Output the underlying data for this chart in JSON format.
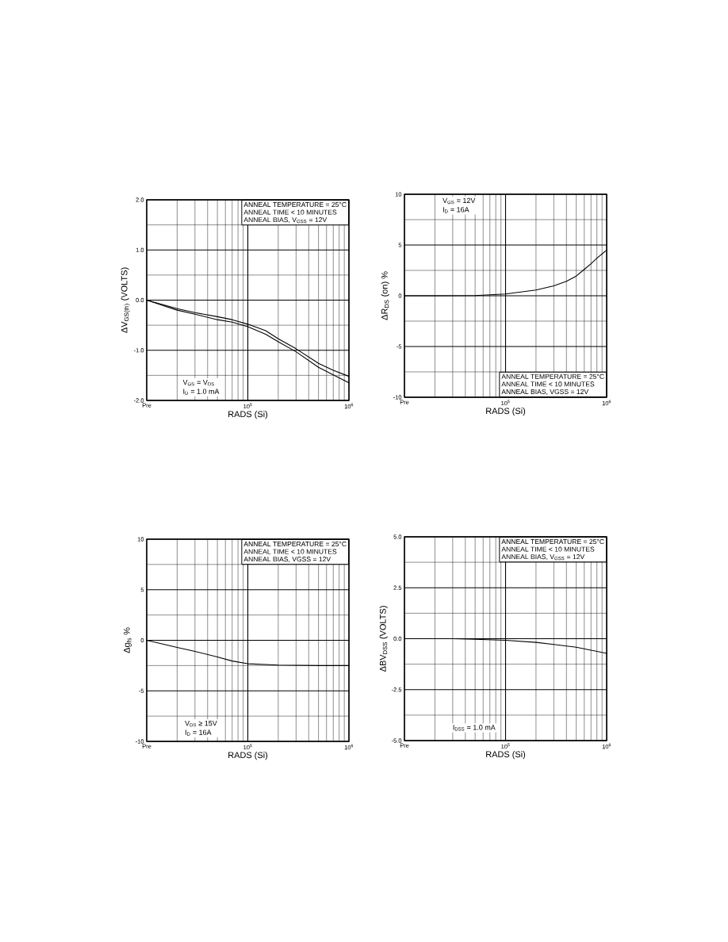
{
  "chart_data": [
    {
      "type": "line",
      "xlabel": "RADS (Si)",
      "ylabel": "ΔV$_{GS(th)}$ (VOLTS)",
      "log": "x",
      "grid": true,
      "marker": "none",
      "xlim": [
        10000,
        1000000
      ],
      "ylim": [
        -2,
        2
      ],
      "xticks": [
        {
          "value": 10000,
          "label": "Pre"
        },
        {
          "value": 20000,
          "label": null
        },
        {
          "value": 30000,
          "label": null
        },
        {
          "value": 40000,
          "label": null
        },
        {
          "value": 50000,
          "label": null
        },
        {
          "value": 60000,
          "label": null
        },
        {
          "value": 70000,
          "label": null
        },
        {
          "value": 80000,
          "label": null
        },
        {
          "value": 90000,
          "label": null
        },
        {
          "value": 100000,
          "label": "10$^{5}$"
        },
        {
          "value": 200000,
          "label": null
        },
        {
          "value": 300000,
          "label": null
        },
        {
          "value": 400000,
          "label": null
        },
        {
          "value": 500000,
          "label": null
        },
        {
          "value": 600000,
          "label": null
        },
        {
          "value": 700000,
          "label": null
        },
        {
          "value": 800000,
          "label": null
        },
        {
          "value": 900000,
          "label": null
        },
        {
          "value": 1000000,
          "label": "10$^{6}$"
        }
      ],
      "yticks": [
        {
          "value": -2,
          "label": "-2.0"
        },
        {
          "value": -1.5,
          "label": null
        },
        {
          "value": -1,
          "label": "-1.0"
        },
        {
          "value": -0.5,
          "label": null
        },
        {
          "value": 0,
          "label": "0.0"
        },
        {
          "value": 0.5,
          "label": null
        },
        {
          "value": 1,
          "label": "1.0"
        },
        {
          "value": 1.5,
          "label": null
        },
        {
          "value": 2,
          "label": "2.0"
        }
      ],
      "x": [
        10000,
        20000,
        30000,
        50000,
        70000,
        100000,
        150000,
        200000,
        300000,
        500000,
        700000,
        1000000
      ],
      "series": [
        {
          "color": "#000000",
          "values": [
            0.0,
            -0.17,
            -0.25,
            -0.33,
            -0.39,
            -0.48,
            -0.61,
            -0.77,
            -0.97,
            -1.26,
            -1.4,
            -1.52
          ]
        },
        {
          "color": "#000000",
          "values": [
            0.0,
            -0.2,
            -0.28,
            -0.39,
            -0.44,
            -0.53,
            -0.68,
            -0.83,
            -1.03,
            -1.34,
            -1.49,
            -1.65
          ]
        }
      ],
      "annotations": [
        "ANNEAL TEMPERATURE = 25°C",
        "ANNEAL TIME < 10 MINUTES",
        "ANNEAL BIAS, V$_{GSS}$ = 12V",
        "V$_{GS}$ = V$_{DS}$",
        "I$_{D}$ = 1.0 mA"
      ]
    },
    {
      "type": "line",
      "xlabel": "RADS (Si)",
      "ylabel": "ΔR$_{DS}$ (on) %",
      "log": "x",
      "grid": true,
      "marker": "none",
      "xlim": [
        10000,
        1000000
      ],
      "ylim": [
        -10,
        10
      ],
      "xticks": [
        {
          "value": 10000,
          "label": "Pre"
        },
        {
          "value": 20000,
          "label": null
        },
        {
          "value": 30000,
          "label": null
        },
        {
          "value": 40000,
          "label": null
        },
        {
          "value": 50000,
          "label": null
        },
        {
          "value": 60000,
          "label": null
        },
        {
          "value": 70000,
          "label": null
        },
        {
          "value": 80000,
          "label": null
        },
        {
          "value": 90000,
          "label": null
        },
        {
          "value": 100000,
          "label": "10$^{5}$"
        },
        {
          "value": 200000,
          "label": null
        },
        {
          "value": 300000,
          "label": null
        },
        {
          "value": 400000,
          "label": null
        },
        {
          "value": 500000,
          "label": null
        },
        {
          "value": 600000,
          "label": null
        },
        {
          "value": 700000,
          "label": null
        },
        {
          "value": 800000,
          "label": null
        },
        {
          "value": 900000,
          "label": null
        },
        {
          "value": 1000000,
          "label": "10$^{6}$"
        }
      ],
      "yticks": [
        -10,
        {
          "value": -7.5,
          "label": null
        },
        -5,
        {
          "value": -2.5,
          "label": null
        },
        0,
        {
          "value": 2.5,
          "label": null
        },
        5,
        {
          "value": 7.5,
          "label": null
        },
        10
      ],
      "x": [
        10000,
        20000,
        50000,
        100000,
        200000,
        300000,
        400000,
        500000,
        600000,
        700000,
        800000,
        1000000
      ],
      "series": [
        {
          "color": "#000000",
          "values": [
            0.0,
            0.0,
            0.02,
            0.18,
            0.57,
            0.98,
            1.42,
            1.94,
            2.6,
            3.15,
            3.7,
            4.5
          ]
        }
      ],
      "annotations": [
        "ANNEAL TEMPERATURE = 25°C",
        "ANNEAL TIME < 10 MINUTES",
        "ANNEAL BIAS, VGSS = 12V",
        "V$_{GS}$ = 12V",
        "I$_{D}$ = 16A"
      ]
    },
    {
      "type": "line",
      "xlabel": "RADS (Si)",
      "ylabel": "Δg$_{fs}$ %",
      "log": "x",
      "grid": true,
      "marker": "none",
      "xlim": [
        10000,
        1000000
      ],
      "ylim": [
        -10,
        10
      ],
      "xticks": [
        {
          "value": 10000,
          "label": "Pre"
        },
        {
          "value": 20000,
          "label": null
        },
        {
          "value": 30000,
          "label": null
        },
        {
          "value": 40000,
          "label": null
        },
        {
          "value": 50000,
          "label": null
        },
        {
          "value": 60000,
          "label": null
        },
        {
          "value": 70000,
          "label": null
        },
        {
          "value": 80000,
          "label": null
        },
        {
          "value": 90000,
          "label": null
        },
        {
          "value": 100000,
          "label": "10$^{5}$"
        },
        {
          "value": 200000,
          "label": null
        },
        {
          "value": 300000,
          "label": null
        },
        {
          "value": 400000,
          "label": null
        },
        {
          "value": 500000,
          "label": null
        },
        {
          "value": 600000,
          "label": null
        },
        {
          "value": 700000,
          "label": null
        },
        {
          "value": 800000,
          "label": null
        },
        {
          "value": 900000,
          "label": null
        },
        {
          "value": 1000000,
          "label": "10$^{6}$"
        }
      ],
      "yticks": [
        -10,
        {
          "value": -7.5,
          "label": null
        },
        -5,
        {
          "value": -2.5,
          "label": null
        },
        0,
        {
          "value": 2.5,
          "label": null
        },
        5,
        {
          "value": 7.5,
          "label": null
        },
        10
      ],
      "x": [
        10000,
        20000,
        30000,
        50000,
        70000,
        100000,
        200000,
        500000,
        1000000
      ],
      "series": [
        {
          "color": "#000000",
          "values": [
            0.0,
            -0.7,
            -1.1,
            -1.65,
            -2.05,
            -2.32,
            -2.45,
            -2.5,
            -2.5
          ]
        }
      ],
      "annotations": [
        "ANNEAL TEMPERATURE = 25°C",
        "ANNEAL TIME < 10 MINUTES",
        "ANNEAL BIAS, VGSS = 12V",
        "V$_{DS}$ ≥ 15V",
        "I$_{D}$ = 16A"
      ]
    },
    {
      "type": "line",
      "xlabel": "RADS (Si)",
      "ylabel": "ΔBV$_{DSS}$ (VOLTS)",
      "log": "x",
      "grid": true,
      "marker": "none",
      "xlim": [
        10000,
        1000000
      ],
      "ylim": [
        -5,
        5
      ],
      "xticks": [
        {
          "value": 10000,
          "label": "Pre"
        },
        {
          "value": 20000,
          "label": null
        },
        {
          "value": 30000,
          "label": null
        },
        {
          "value": 40000,
          "label": null
        },
        {
          "value": 50000,
          "label": null
        },
        {
          "value": 60000,
          "label": null
        },
        {
          "value": 70000,
          "label": null
        },
        {
          "value": 80000,
          "label": null
        },
        {
          "value": 90000,
          "label": null
        },
        {
          "value": 100000,
          "label": "10$^{5}$"
        },
        {
          "value": 200000,
          "label": null
        },
        {
          "value": 300000,
          "label": null
        },
        {
          "value": 400000,
          "label": null
        },
        {
          "value": 500000,
          "label": null
        },
        {
          "value": 600000,
          "label": null
        },
        {
          "value": 700000,
          "label": null
        },
        {
          "value": 800000,
          "label": null
        },
        {
          "value": 900000,
          "label": null
        },
        {
          "value": 1000000,
          "label": "10$^{6}$"
        }
      ],
      "yticks": [
        {
          "value": -5,
          "label": "-5.0"
        },
        {
          "value": -3.75,
          "label": null
        },
        {
          "value": -2.5,
          "label": "-2.5"
        },
        {
          "value": -1.25,
          "label": null
        },
        {
          "value": 0,
          "label": "0.0"
        },
        {
          "value": 1.25,
          "label": null
        },
        {
          "value": 2.5,
          "label": "2.5"
        },
        {
          "value": 3.75,
          "label": null
        },
        {
          "value": 5,
          "label": "5.0"
        }
      ],
      "x": [
        10000,
        30000,
        50000,
        100000,
        200000,
        300000,
        500000,
        1000000
      ],
      "series": [
        {
          "color": "#000000",
          "values": [
            0.0,
            0.0,
            -0.03,
            -0.08,
            -0.18,
            -0.28,
            -0.42,
            -0.72
          ]
        }
      ],
      "annotations": [
        "ANNEAL TEMPERATURE = 25°C",
        "ANNEAL TIME < 10 MINUTES",
        "ANNEAL BIAS, V$_{GSS}$ = 12V",
        "I$_{DSS}$ = 1.0 mA"
      ]
    }
  ]
}
